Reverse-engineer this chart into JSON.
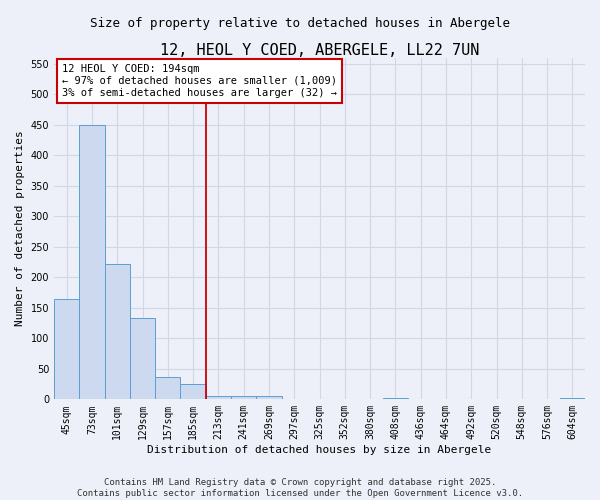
{
  "title": "12, HEOL Y COED, ABERGELE, LL22 7UN",
  "subtitle": "Size of property relative to detached houses in Abergele",
  "xlabel": "Distribution of detached houses by size in Abergele",
  "ylabel": "Number of detached properties",
  "bar_color": "#ccd9ef",
  "bar_edge_color": "#5a9fd4",
  "categories": [
    "45sqm",
    "73sqm",
    "101sqm",
    "129sqm",
    "157sqm",
    "185sqm",
    "213sqm",
    "241sqm",
    "269sqm",
    "297sqm",
    "325sqm",
    "352sqm",
    "380sqm",
    "408sqm",
    "436sqm",
    "464sqm",
    "492sqm",
    "520sqm",
    "548sqm",
    "576sqm",
    "604sqm"
  ],
  "values": [
    165,
    450,
    222,
    133,
    36,
    25,
    5,
    5,
    5,
    0,
    0,
    0,
    0,
    3,
    0,
    0,
    0,
    0,
    0,
    0,
    3
  ],
  "vline_bin": 6,
  "annotation_text": "12 HEOL Y COED: 194sqm\n← 97% of detached houses are smaller (1,009)\n3% of semi-detached houses are larger (32) →",
  "annotation_box_color": "#ffffff",
  "annotation_box_edge": "#cc0000",
  "vline_color": "#cc0000",
  "ylim": [
    0,
    560
  ],
  "yticks": [
    0,
    50,
    100,
    150,
    200,
    250,
    300,
    350,
    400,
    450,
    500,
    550
  ],
  "footer_line1": "Contains HM Land Registry data © Crown copyright and database right 2025.",
  "footer_line2": "Contains public sector information licensed under the Open Government Licence v3.0.",
  "bg_color": "#edf0f8",
  "grid_color": "#d0d8e8",
  "title_fontsize": 11,
  "subtitle_fontsize": 9,
  "axis_label_fontsize": 8,
  "tick_fontsize": 7,
  "annotation_fontsize": 7.5,
  "footer_fontsize": 6.5
}
